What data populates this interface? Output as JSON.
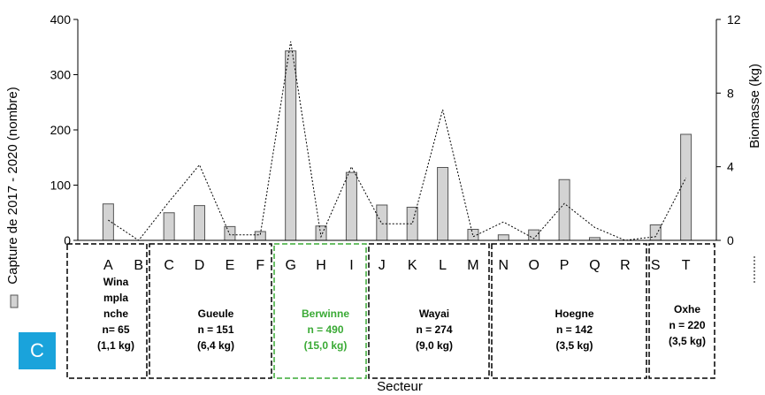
{
  "panel_label": "C",
  "chart_data": {
    "type": "bar",
    "xlabel": "Secteur",
    "ylabel_left": "Capture de 2017 - 2020 (nombre)",
    "ylabel_right": "Biomasse (kg)",
    "ylim_left": [
      0,
      400
    ],
    "yticks_left": [
      "0",
      "100",
      "200",
      "300",
      "400"
    ],
    "ylim_right": [
      0,
      12
    ],
    "yticks_right": [
      "0",
      "4",
      "8",
      "12"
    ],
    "categories": [
      "A",
      "B",
      "C",
      "D",
      "E",
      "F",
      "G",
      "H",
      "I",
      "J",
      "K",
      "L",
      "M",
      "N",
      "O",
      "P",
      "Q",
      "R",
      "S",
      "T"
    ],
    "series": [
      {
        "kind": "bar",
        "color": "#d3d3d3",
        "values": [
          66,
          0,
          50,
          63,
          25,
          16,
          343,
          26,
          123,
          64,
          60,
          132,
          20,
          10,
          19,
          110,
          5,
          0,
          28,
          192
        ]
      },
      {
        "kind": "line",
        "style": "dotted",
        "color": "#000000",
        "values": [
          1.1,
          0,
          2.1,
          4.1,
          0.3,
          0.3,
          10.8,
          0.2,
          4.0,
          0.9,
          0.9,
          7.1,
          0.2,
          1.0,
          0.1,
          2.0,
          0.7,
          0,
          0.2,
          3.4
        ]
      }
    ],
    "groups": [
      {
        "lines": [
          "Wina",
          "mpla",
          "nche",
          "n= 65",
          "(1,1 kg)"
        ],
        "color": "#000000",
        "highlight": false
      },
      {
        "lines": [
          "Gueule",
          "n = 151",
          "(6,4 kg)"
        ],
        "color": "#000000",
        "highlight": false
      },
      {
        "lines": [
          "Berwinne",
          "n = 490",
          "(15,0 kg)"
        ],
        "color": "#3aaa35",
        "highlight": true
      },
      {
        "lines": [
          "Wayai",
          "n = 274",
          "(9,0 kg)"
        ],
        "color": "#000000",
        "highlight": false
      },
      {
        "lines": [
          "Hoegne",
          "n = 142",
          "(3,5 kg)"
        ],
        "color": "#000000",
        "highlight": false
      },
      {
        "lines": [
          "Oxhe",
          "n = 220",
          "(3,5 kg)"
        ],
        "color": "#000000",
        "highlight": false
      }
    ]
  }
}
